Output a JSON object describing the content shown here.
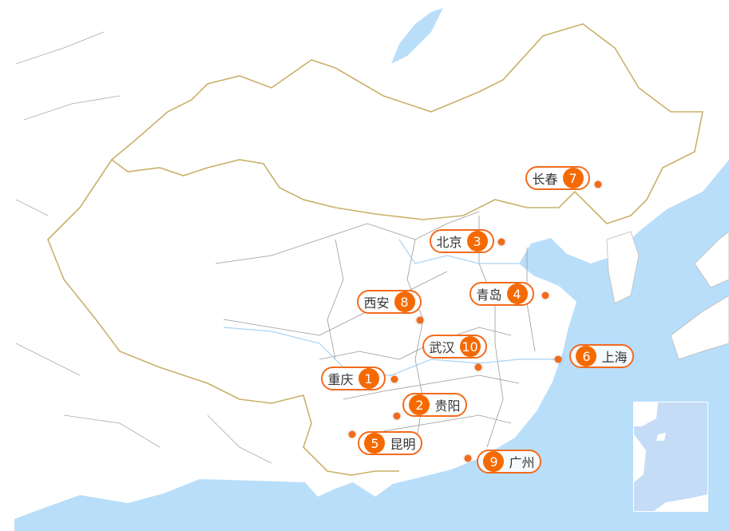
{
  "colors": {
    "sea": "#b9defa",
    "land": "#ffffff",
    "national_border": "#c9b06a",
    "province_border": "#9a9a9a",
    "marker": "#f56a00"
  },
  "cities": [
    {
      "rank": "1",
      "name": "重庆",
      "number_first": false
    },
    {
      "rank": "2",
      "name": "贵阳",
      "number_first": true
    },
    {
      "rank": "3",
      "name": "北京",
      "number_first": false
    },
    {
      "rank": "4",
      "name": "青岛",
      "number_first": false
    },
    {
      "rank": "5",
      "name": "昆明",
      "number_first": true
    },
    {
      "rank": "6",
      "name": "上海",
      "number_first": true
    },
    {
      "rank": "7",
      "name": "长春",
      "number_first": false
    },
    {
      "rank": "8",
      "name": "西安",
      "number_first": false
    },
    {
      "rank": "9",
      "name": "广州",
      "number_first": true
    },
    {
      "rank": "10",
      "name": "武汉",
      "number_first": false
    }
  ]
}
